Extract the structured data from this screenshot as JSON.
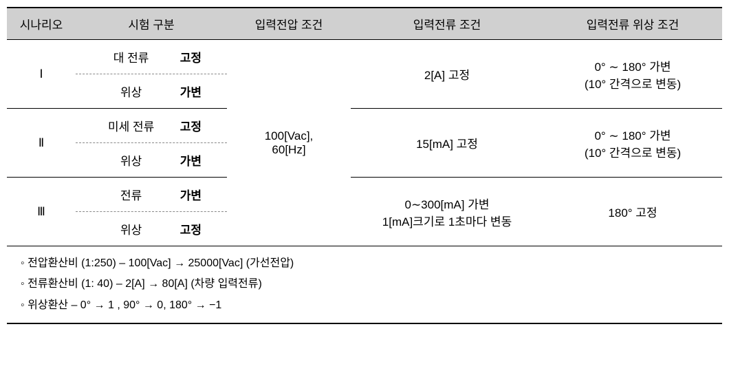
{
  "table": {
    "headers": {
      "scenario": "시나리오",
      "test": "시험 구분",
      "voltage": "입력전압 조건",
      "current": "입력전류 조건",
      "phase": "입력전류 위상 조건"
    },
    "voltage_value": "100[Vac],\n60[Hz]",
    "scenarios": [
      {
        "id": "Ⅰ",
        "test1_label": "대 전류",
        "test1_value": "고정",
        "test2_label": "위상",
        "test2_value": "가변",
        "current": "2[A] 고정",
        "phase": "0° ∼ 180° 가변\n(10° 간격으로 변동)"
      },
      {
        "id": "Ⅱ",
        "test1_label": "미세 전류",
        "test1_value": "고정",
        "test2_label": "위상",
        "test2_value": "가변",
        "current": "15[mA] 고정",
        "phase": "0° ∼ 180° 가변\n(10° 간격으로 변동)"
      },
      {
        "id": "Ⅲ",
        "test1_label": "전류",
        "test1_value": "가변",
        "test2_label": "위상",
        "test2_value": "고정",
        "current": "0∼300[mA] 가변\n1[mA]크기로 1초마다 변동",
        "phase": "180° 고정"
      }
    ]
  },
  "notes": {
    "line1": "전압환산비 (1:250) – 100[Vac] → 25000[Vac] (가선전압)",
    "line2": "전류환산비 (1: 40) – 2[A] → 80[A] (차량 입력전류)",
    "line3": "위상환산 – 0° → 1 , 90° → 0, 180° → −1"
  }
}
